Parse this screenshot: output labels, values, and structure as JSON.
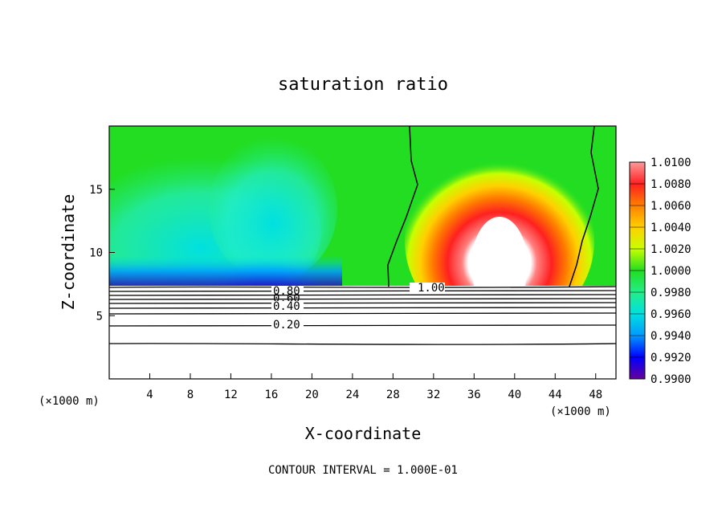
{
  "chart_data": {
    "type": "contour",
    "title": "saturation ratio",
    "xlabel": "X-coordinate",
    "ylabel": "Z-coordinate",
    "x_unit": "(×1000 m)",
    "xlim": [
      0,
      50
    ],
    "ylim": [
      0,
      20
    ],
    "x_ticks": [
      "4",
      "8",
      "12",
      "16",
      "20",
      "24",
      "28",
      "32",
      "36",
      "40",
      "44",
      "48"
    ],
    "y_ticks": [
      "5",
      "10",
      "15"
    ],
    "colorbar": {
      "labels": [
        "1.0100",
        "1.0080",
        "1.0060",
        "1.0040",
        "1.0020",
        "1.0000",
        "0.9980",
        "0.9960",
        "0.9940",
        "0.9920",
        "0.9900"
      ],
      "colors": [
        "#ff7f7f",
        "#ff2222",
        "#ff8000",
        "#ffd000",
        "#c8ff00",
        "#22dd22",
        "#22ee88",
        "#00e0e0",
        "#0099ff",
        "#0000ff",
        "#6600aa"
      ]
    },
    "contour_lines": [
      {
        "level": 1.0,
        "label": "1.00"
      },
      {
        "level": 0.8,
        "label": "0.80"
      },
      {
        "level": 0.6,
        "label": "0.60"
      },
      {
        "level": 0.4,
        "label": "0.40"
      },
      {
        "level": 0.2,
        "label": "0.20"
      }
    ],
    "contour_interval_text": "CONTOUR INTERVAL = 1.000E-01"
  }
}
